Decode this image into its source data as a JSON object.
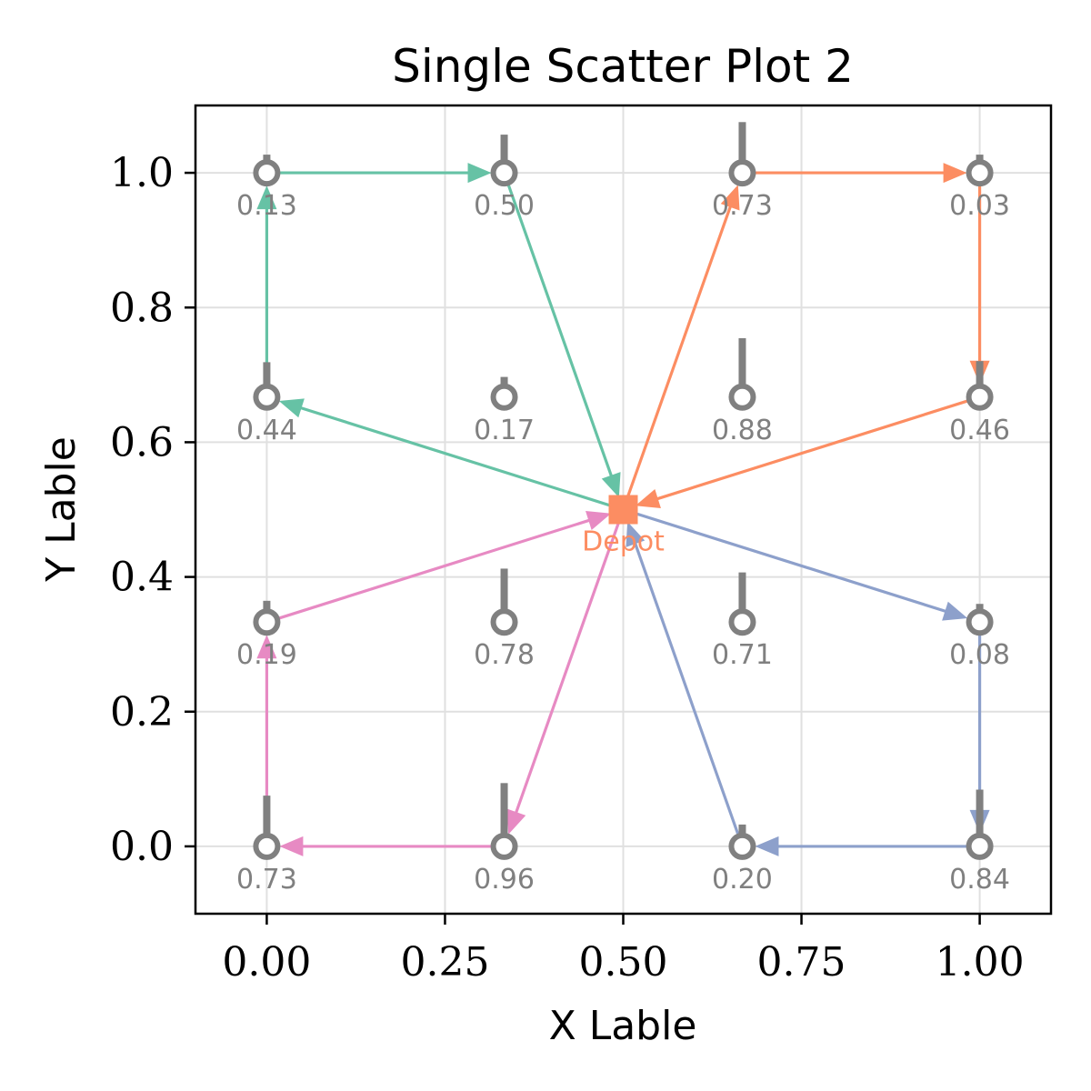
{
  "chart_data": {
    "type": "scatter",
    "title": "Single Scatter Plot 2",
    "xlabel": "X Lable",
    "ylabel": "Y Lable",
    "xlim": [
      -0.1,
      1.1
    ],
    "ylim": [
      -0.1,
      1.1
    ],
    "xticks": [
      0.0,
      0.25,
      0.5,
      0.75,
      1.0
    ],
    "xtick_labels": [
      "0.00",
      "0.25",
      "0.50",
      "0.75",
      "1.00"
    ],
    "yticks": [
      0.0,
      0.2,
      0.4,
      0.6,
      0.8,
      1.0
    ],
    "ytick_labels": [
      "0.0",
      "0.2",
      "0.4",
      "0.6",
      "0.8",
      "1.0"
    ],
    "grid": true,
    "depot": {
      "x": 0.5,
      "y": 0.5,
      "label": "Depot",
      "color": "#fc8d62"
    },
    "nodes": [
      {
        "x": 0.0,
        "y": 1.0,
        "label": "0.13",
        "demand": 0.13
      },
      {
        "x": 0.333,
        "y": 1.0,
        "label": "0.50",
        "demand": 0.5
      },
      {
        "x": 0.667,
        "y": 1.0,
        "label": "0.73",
        "demand": 0.73
      },
      {
        "x": 1.0,
        "y": 1.0,
        "label": "0.03",
        "demand": 0.03
      },
      {
        "x": 0.0,
        "y": 0.667,
        "label": "0.44",
        "demand": 0.44
      },
      {
        "x": 0.333,
        "y": 0.667,
        "label": "0.17",
        "demand": 0.17
      },
      {
        "x": 0.667,
        "y": 0.667,
        "label": "0.88",
        "demand": 0.88
      },
      {
        "x": 1.0,
        "y": 0.667,
        "label": "0.46",
        "demand": 0.46
      },
      {
        "x": 0.0,
        "y": 0.333,
        "label": "0.19",
        "demand": 0.19
      },
      {
        "x": 0.333,
        "y": 0.333,
        "label": "0.78",
        "demand": 0.78
      },
      {
        "x": 0.667,
        "y": 0.333,
        "label": "0.71",
        "demand": 0.71
      },
      {
        "x": 1.0,
        "y": 0.333,
        "label": "0.08",
        "demand": 0.08
      },
      {
        "x": 0.0,
        "y": 0.0,
        "label": "0.73",
        "demand": 0.73
      },
      {
        "x": 0.333,
        "y": 0.0,
        "label": "0.96",
        "demand": 0.96
      },
      {
        "x": 0.667,
        "y": 0.0,
        "label": "0.20",
        "demand": 0.2
      },
      {
        "x": 1.0,
        "y": 0.0,
        "label": "0.84",
        "demand": 0.84
      }
    ],
    "node_color": "#808080",
    "routes": [
      {
        "color": "#66c2a5",
        "path": [
          [
            0.5,
            0.5
          ],
          [
            0.0,
            0.667
          ],
          [
            0.0,
            1.0
          ],
          [
            0.333,
            1.0
          ],
          [
            0.5,
            0.5
          ]
        ]
      },
      {
        "color": "#fc8d62",
        "path": [
          [
            0.5,
            0.5
          ],
          [
            0.667,
            1.0
          ],
          [
            1.0,
            1.0
          ],
          [
            1.0,
            0.667
          ],
          [
            0.5,
            0.5
          ]
        ]
      },
      {
        "color": "#8da0cb",
        "path": [
          [
            0.5,
            0.5
          ],
          [
            1.0,
            0.333
          ],
          [
            1.0,
            0.0
          ],
          [
            0.667,
            0.0
          ],
          [
            0.5,
            0.5
          ]
        ]
      },
      {
        "color": "#e78ac3",
        "path": [
          [
            0.5,
            0.5
          ],
          [
            0.333,
            0.0
          ],
          [
            0.0,
            0.0
          ],
          [
            0.0,
            0.333
          ],
          [
            0.5,
            0.5
          ]
        ]
      }
    ]
  }
}
